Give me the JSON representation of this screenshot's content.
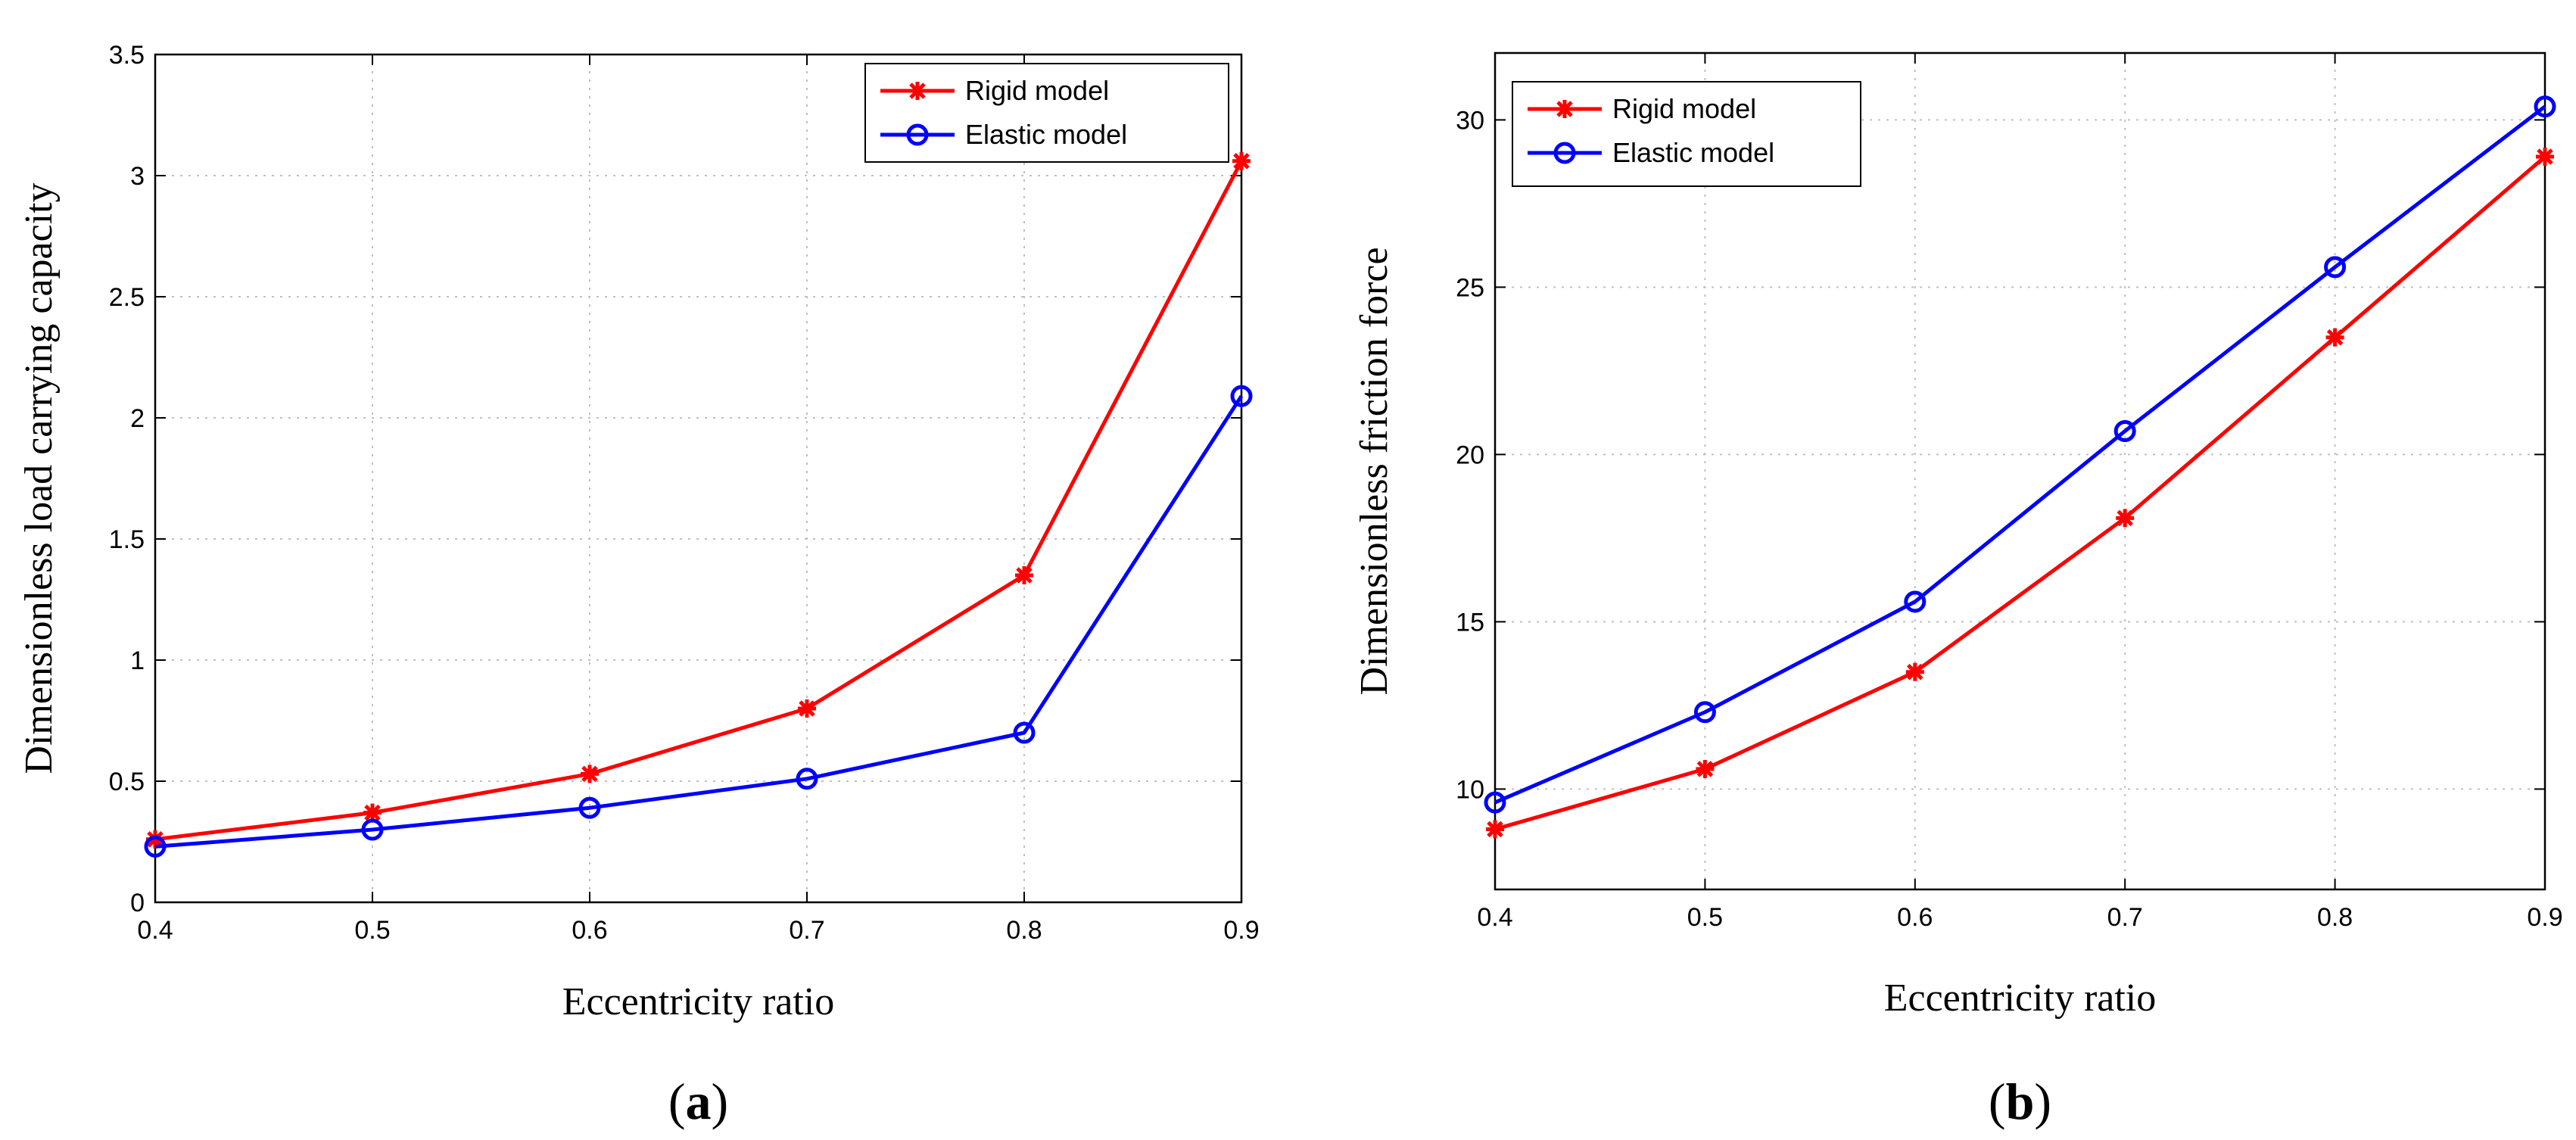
{
  "chart_data": [
    {
      "type": "line",
      "panel_label": "(a)",
      "panel_letter": "a",
      "xlabel": "Eccentricity ratio",
      "ylabel": "Dimensionless load carrying capacity",
      "x": [
        0.4,
        0.5,
        0.6,
        0.7,
        0.8,
        0.9
      ],
      "xlim": [
        0.4,
        0.9
      ],
      "ylim": [
        0,
        3.5
      ],
      "xticks": [
        "0.4",
        "0.5",
        "0.6",
        "0.7",
        "0.8",
        "0.9"
      ],
      "yticks": [
        "0",
        "0.5",
        "1",
        "1.5",
        "2",
        "2.5",
        "3",
        "3.5"
      ],
      "grid": true,
      "legend_position": "top-right",
      "series": [
        {
          "name": "Rigid model",
          "color": "#ff0000",
          "marker": "asterisk",
          "values": [
            0.26,
            0.37,
            0.53,
            0.8,
            1.35,
            3.06
          ]
        },
        {
          "name": "Elastic model",
          "color": "#0000ff",
          "marker": "circle",
          "values": [
            0.23,
            0.3,
            0.39,
            0.51,
            0.7,
            2.09
          ]
        }
      ]
    },
    {
      "type": "line",
      "panel_label": "(b)",
      "panel_letter": "b",
      "xlabel": "Eccentricity ratio",
      "ylabel": "Dimensionless friction force",
      "x": [
        0.4,
        0.5,
        0.6,
        0.7,
        0.8,
        0.9
      ],
      "xlim": [
        0.4,
        0.9
      ],
      "ylim": [
        7,
        32
      ],
      "xticks": [
        "0.4",
        "0.5",
        "0.6",
        "0.7",
        "0.8",
        "0.9"
      ],
      "yticks": [
        "10",
        "15",
        "20",
        "25",
        "30"
      ],
      "grid": true,
      "legend_position": "top-left",
      "series": [
        {
          "name": "Rigid model",
          "color": "#ff0000",
          "marker": "asterisk",
          "values": [
            8.8,
            10.6,
            13.5,
            18.1,
            23.5,
            28.9
          ]
        },
        {
          "name": "Elastic model",
          "color": "#0000ff",
          "marker": "circle",
          "values": [
            9.6,
            12.3,
            15.6,
            20.7,
            25.6,
            30.4
          ]
        }
      ]
    }
  ]
}
